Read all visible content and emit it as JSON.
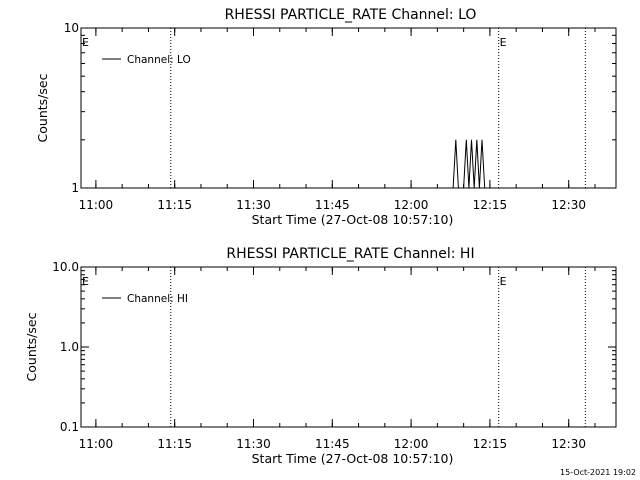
{
  "chart_data": [
    {
      "type": "line",
      "title": "RHESSI PARTICLE_RATE Channel: LO",
      "xlabel": "Start Time (27-Oct-08 10:57:10)",
      "ylabel": "Counts/sec",
      "yscale": "log",
      "xlim": [
        "10:57:10",
        "12:39:00"
      ],
      "ylim": [
        1,
        10
      ],
      "x_ticks": [
        "11:00",
        "11:15",
        "11:30",
        "11:45",
        "12:00",
        "12:15",
        "12:30"
      ],
      "y_ticks": [
        {
          "value": 1,
          "label": "1"
        },
        {
          "value": 10,
          "label": "10"
        }
      ],
      "legend": {
        "position": "top-left",
        "entries": [
          "Channel: LO"
        ]
      },
      "series": [
        {
          "name": "Channel: LO",
          "x": [
            "12:08:00",
            "12:08:30",
            "12:09:00",
            "12:09:30",
            "12:10:00",
            "12:10:30",
            "12:11:00",
            "12:11:30",
            "12:12:00",
            "12:12:30",
            "12:13:00",
            "12:13:30",
            "12:14:00",
            "12:14:30"
          ],
          "values": [
            1,
            2,
            1,
            1,
            1,
            2,
            1,
            2,
            1,
            2,
            1,
            2,
            1,
            1
          ]
        }
      ],
      "markers": [
        {
          "time": "11:14:15",
          "flag": ""
        },
        {
          "time": "12:16:40",
          "flag": "E"
        },
        {
          "time": "12:33:10",
          "flag": ""
        }
      ],
      "edge_flag": "E"
    },
    {
      "type": "line",
      "title": "RHESSI PARTICLE_RATE Channel: HI",
      "xlabel": "Start Time (27-Oct-08 10:57:10)",
      "ylabel": "Counts/sec",
      "yscale": "log",
      "xlim": [
        "10:57:10",
        "12:39:00"
      ],
      "ylim": [
        0.1,
        10
      ],
      "x_ticks": [
        "11:00",
        "11:15",
        "11:30",
        "11:45",
        "12:00",
        "12:15",
        "12:30"
      ],
      "y_ticks": [
        {
          "value": 0.1,
          "label": "0.1"
        },
        {
          "value": 1,
          "label": "1.0"
        },
        {
          "value": 10,
          "label": "10.0"
        }
      ],
      "legend": {
        "position": "top-left",
        "entries": [
          "Channel: HI"
        ]
      },
      "series": [
        {
          "name": "Channel: HI",
          "x": [],
          "values": []
        }
      ],
      "markers": [
        {
          "time": "11:14:15",
          "flag": ""
        },
        {
          "time": "12:16:40",
          "flag": "E"
        },
        {
          "time": "12:33:10",
          "flag": ""
        }
      ],
      "edge_flag": "E"
    }
  ],
  "footer": {
    "timestamp": "15-Oct-2021 19:02"
  }
}
